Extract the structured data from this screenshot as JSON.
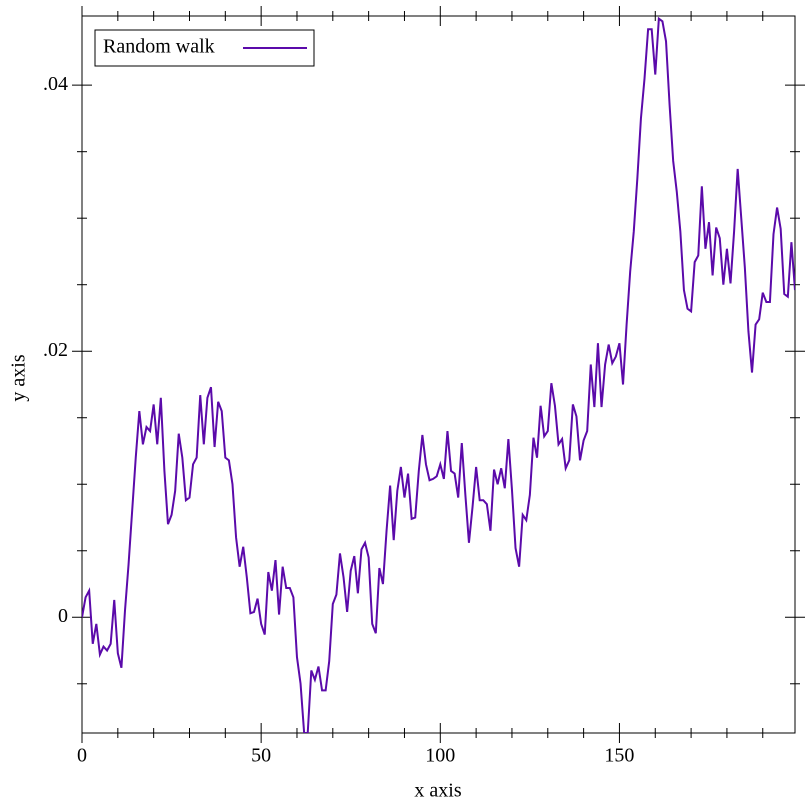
{
  "chart_data": {
    "type": "line",
    "xlabel": "x axis",
    "ylabel": "y axis",
    "x": [
      0,
      1,
      2,
      3,
      4,
      5,
      6,
      7,
      8,
      9,
      10,
      11,
      12,
      13,
      14,
      15,
      16,
      17,
      18,
      19,
      20,
      21,
      22,
      23,
      24,
      25,
      26,
      27,
      28,
      29,
      30,
      31,
      32,
      33,
      34,
      35,
      36,
      37,
      38,
      39,
      40,
      41,
      42,
      43,
      44,
      45,
      46,
      47,
      48,
      49,
      50,
      51,
      52,
      53,
      54,
      55,
      56,
      57,
      58,
      59,
      60,
      61,
      62,
      63,
      64,
      65,
      66,
      67,
      68,
      69,
      70,
      71,
      72,
      73,
      74,
      75,
      76,
      77,
      78,
      79,
      80,
      81,
      82,
      83,
      84,
      85,
      86,
      87,
      88,
      89,
      90,
      91,
      92,
      93,
      94,
      95,
      96,
      97,
      98,
      99,
      100,
      101,
      102,
      103,
      104,
      105,
      106,
      107,
      108,
      109,
      110,
      111,
      112,
      113,
      114,
      115,
      116,
      117,
      118,
      119,
      120,
      121,
      122,
      123,
      124,
      125,
      126,
      127,
      128,
      129,
      130,
      131,
      132,
      133,
      134,
      135,
      136,
      137,
      138,
      139,
      140,
      141,
      142,
      143,
      144,
      145,
      146,
      147,
      148,
      149,
      150,
      151,
      152,
      153,
      154,
      155,
      156,
      157,
      158,
      159,
      160,
      161,
      162,
      163,
      164,
      165,
      166,
      167,
      168,
      169,
      170,
      171,
      172,
      173,
      174,
      175,
      176,
      177,
      178,
      179,
      180,
      181,
      182,
      183,
      184,
      185,
      186,
      187,
      188,
      189,
      190,
      191,
      192,
      193,
      194,
      195,
      196,
      197,
      198,
      199
    ],
    "series": [
      {
        "name": "Random walk",
        "color": "#5b0aaa",
        "values": [
          0,
          0.0015,
          0.002,
          -0.002,
          -0.0005,
          -0.0028,
          -0.0022,
          -0.0025,
          -0.002,
          0.0013,
          -0.0027,
          -0.0038,
          0.0005,
          0.004,
          0.008,
          0.012,
          0.0155,
          0.013,
          0.0143,
          0.014,
          0.016,
          0.013,
          0.0165,
          0.011,
          0.007,
          0.0077,
          0.0095,
          0.0138,
          0.012,
          0.0088,
          0.009,
          0.0115,
          0.012,
          0.0167,
          0.013,
          0.0165,
          0.0173,
          0.0128,
          0.0162,
          0.0155,
          0.012,
          0.0118,
          0.01,
          0.006,
          0.0038,
          0.0053,
          0.003,
          0.0003,
          0.0004,
          0.0014,
          -0.0005,
          -0.0013,
          0.0034,
          0.002,
          0.0043,
          0.0002,
          0.0038,
          0.0022,
          0.0022,
          0.0015,
          -0.003,
          -0.005,
          -0.0087,
          -0.0087,
          -0.004,
          -0.0047,
          -0.0037,
          -0.0055,
          -0.0055,
          -0.0033,
          0.001,
          0.0017,
          0.0048,
          0.003,
          0.0004,
          0.0035,
          0.0046,
          0.0018,
          0.0051,
          0.0056,
          0.0045,
          -0.0005,
          -0.0012,
          0.0037,
          0.0025,
          0.0065,
          0.0099,
          0.0058,
          0.0095,
          0.0113,
          0.009,
          0.0108,
          0.0074,
          0.0075,
          0.011,
          0.0137,
          0.0115,
          0.0103,
          0.0104,
          0.0106,
          0.0115,
          0.0104,
          0.014,
          0.011,
          0.0108,
          0.009,
          0.0131,
          0.0092,
          0.0056,
          0.0083,
          0.0113,
          0.0088,
          0.0088,
          0.0085,
          0.0065,
          0.0111,
          0.01,
          0.0112,
          0.0097,
          0.0134,
          0.0096,
          0.0052,
          0.0038,
          0.0077,
          0.0073,
          0.0092,
          0.0135,
          0.012,
          0.0159,
          0.0136,
          0.014,
          0.0176,
          0.0159,
          0.013,
          0.0134,
          0.0112,
          0.0118,
          0.016,
          0.0151,
          0.0118,
          0.0133,
          0.014,
          0.019,
          0.0158,
          0.0206,
          0.0158,
          0.019,
          0.0205,
          0.0191,
          0.0196,
          0.0206,
          0.0175,
          0.022,
          0.026,
          0.029,
          0.033,
          0.0375,
          0.0405,
          0.0442,
          0.0442,
          0.0408,
          0.045,
          0.0448,
          0.0433,
          0.0385,
          0.0343,
          0.032,
          0.029,
          0.0246,
          0.0232,
          0.023,
          0.0267,
          0.0272,
          0.0324,
          0.0277,
          0.0297,
          0.0257,
          0.0293,
          0.0285,
          0.025,
          0.0277,
          0.0251,
          0.029,
          0.0337,
          0.03,
          0.0263,
          0.0215,
          0.0184,
          0.022,
          0.0224,
          0.0244,
          0.0237,
          0.0237,
          0.0288,
          0.0308,
          0.0292,
          0.0243,
          0.0241,
          0.0282,
          0.0246
        ]
      }
    ],
    "xlim": [
      0,
      199
    ],
    "ylim": [
      -0.0087,
      0.0452
    ],
    "xticks": [
      0,
      50,
      100,
      150
    ],
    "yticks": [
      0,
      {
        "value": 0.02,
        "label": ".02"
      },
      {
        "value": 0.04,
        "label": ".04"
      }
    ],
    "xminorticks": [
      10,
      20,
      30,
      40,
      60,
      70,
      80,
      90,
      110,
      120,
      130,
      140,
      160,
      170,
      180,
      190
    ],
    "yminorticks": [
      -0.005,
      0.005,
      0.01,
      0.015,
      0.025,
      0.03,
      0.035
    ],
    "legend": "top-left",
    "grid": false
  }
}
